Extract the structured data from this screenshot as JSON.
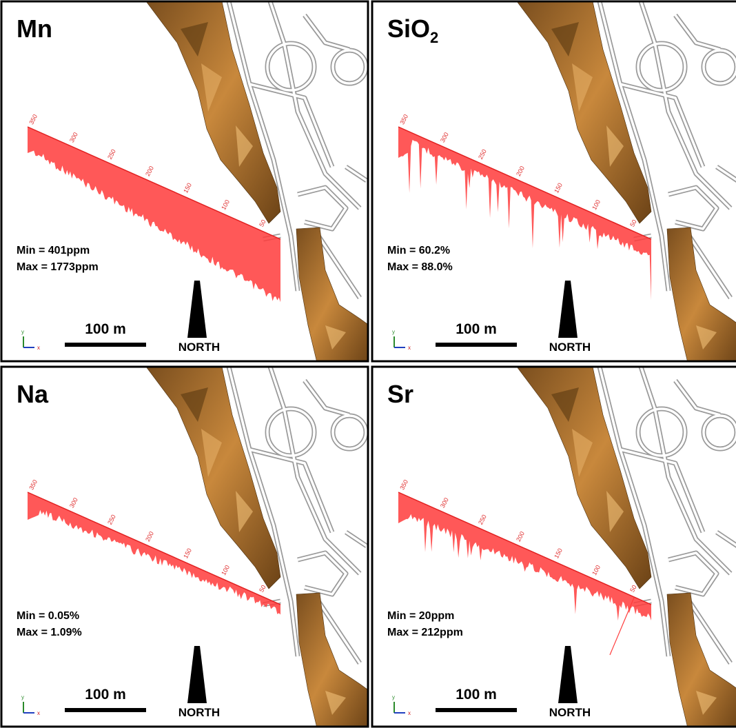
{
  "depth_labels": [
    "350",
    "300",
    "250",
    "200",
    "150",
    "100",
    "50"
  ],
  "axis_labels": [
    "y",
    "x"
  ],
  "scale_label": "100 m",
  "north_label": "NORTH",
  "panels": [
    {
      "title": "Mn",
      "min": "Min =  401ppm",
      "max": "Max = 1773ppm"
    },
    {
      "title": "SiO",
      "title_subscript": "2",
      "min": "Min = 60.2%",
      "max": "Max = 88.0%"
    },
    {
      "title": "Na",
      "min": "Min =  0.05%",
      "max": "Max = 1.09%"
    },
    {
      "title": "Sr",
      "min": "Min = 20ppm",
      "max": "Max = 212ppm"
    }
  ]
}
